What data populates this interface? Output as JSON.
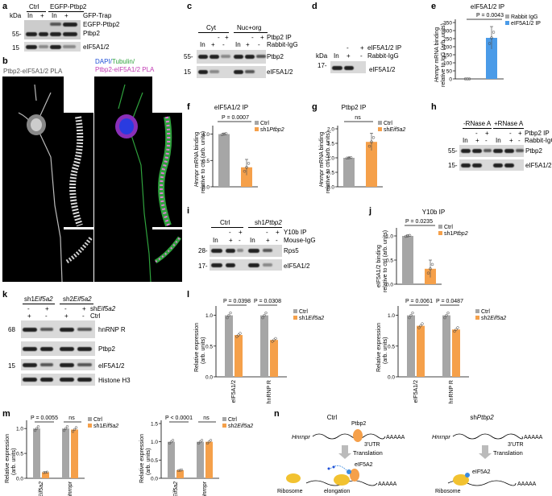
{
  "panels": [
    "a",
    "b",
    "c",
    "d",
    "e",
    "f",
    "g",
    "h",
    "i",
    "j",
    "k",
    "l",
    "m",
    "n"
  ],
  "a": {
    "kda": "kDa",
    "ctrl": "Ctrl",
    "egfp": "EGFP-Ptbp2",
    "in": "In",
    "plus": "+",
    "gfptrap": "GFP-Trap",
    "r1": "EGFP-Ptbp2",
    "r2": "Ptbp2",
    "r3": "eIF5A1/2",
    "mw55": "55-",
    "mw15": "15"
  },
  "b": {
    "left_title": "Ptbp2-eIF5A1/2 PLA",
    "dapi": "DAPI/",
    "tub": "Tubulin/",
    "pla": "Ptbp2-eIF5A1/2 PLA"
  },
  "c": {
    "cyt": "Cyt",
    "nuc": "Nuc+org",
    "in": "In",
    "plus": "+",
    "minus": "-",
    "ip": "Ptbp2 IP",
    "igg": "Rabbit-IgG",
    "r1": "Ptbp2",
    "r2": "eIF5A1/2",
    "mw55": "55-",
    "mw15": "15"
  },
  "d": {
    "kda": "kDa",
    "in": "In",
    "plus": "+",
    "minus": "-",
    "ip": "eIF5A1/2 IP",
    "igg": "Rabbit-IgG",
    "r1": "eIF5A1/2",
    "mw17": "17-"
  },
  "e": {
    "title": "eIF5A1/2 IP",
    "pval": "P = 0.0043",
    "leg1": "Rabbit IgG",
    "leg2": "eIF5A1/2 IP",
    "ylab1": "Hnrnpr",
    "ylab2": " mRNA binding",
    "ylab3": "relative to IgG (arb. units)",
    "ticks": [
      "0",
      "50",
      "100",
      "150",
      "200",
      "250",
      "300",
      "350"
    ]
  },
  "f": {
    "title": "eIF5A1/2 IP",
    "pval": "P = 0.0007",
    "leg1": "Ctrl",
    "leg2": "sh1",
    "leg2i": "Ptbp2",
    "ylab1": "Hnrnpr",
    "ylab2": " mRNA binding",
    "ylab3": "relative to ctrl (arb. units)",
    "ticks": [
      "0.0",
      "0.5",
      "1.0"
    ]
  },
  "g": {
    "title": "Ptbp2 IP",
    "ns": "ns",
    "leg1": "Ctrl",
    "leg2": "sh",
    "leg2i": "Eif5a2",
    "ylab1": "Hnrnpr",
    "ylab2": " mRNA binding",
    "ylab3": "relative to ctrl (arb. units)",
    "ticks": [
      "0.0",
      "0.5",
      "1.0",
      "1.5",
      "2.0"
    ]
  },
  "h": {
    "rm": "-RNase A",
    "rp": "+RNase A",
    "in": "In",
    "plus": "+",
    "minus": "-",
    "ip": "Ptbp2 IP",
    "igg": "Rabbit-IgG",
    "r1": "Ptbp2",
    "r2": "eIF5A1/2",
    "mw55": "55-",
    "mw15": "15-"
  },
  "i": {
    "ctrl": "Ctrl",
    "sh1": "sh1",
    "sh1i": "Ptbp2",
    "in": "In",
    "plus": "+",
    "minus": "-",
    "ip": "Y10b IP",
    "igg": "Mouse-IgG",
    "r1": "Rps5",
    "r2": "eIF5A1/2",
    "mw28": "28-",
    "mw17": "17-"
  },
  "j": {
    "title": "Y10b IP",
    "pval": "P = 0.0235",
    "leg1": "Ctrl",
    "leg2": "sh1",
    "leg2i": "Ptbp2",
    "ylab1": "eIF5A1/2 binding",
    "ylab2": "relative to ctrl (arb. units)",
    "ticks": [
      "0.0",
      "0.5",
      "1.0"
    ]
  },
  "k": {
    "sh1": "sh1",
    "sh2": "sh2",
    "gi": "Eif5a2",
    "plus": "+",
    "minus": "-",
    "shl": "sh",
    "shli": "Eif5a2",
    "ctrl": "Ctrl",
    "r1": "hnRNP R",
    "r2": "Ptbp2",
    "r3": "eIF5A1/2",
    "r4": "Histone H3",
    "mw68": "68",
    "mw15": "15"
  },
  "l": {
    "left": {
      "p1": "P = 0.0398",
      "p2": "P = 0.0308",
      "leg1": "Ctrl",
      "leg2": "sh1",
      "leg2i": "Eif5a2",
      "ylab1": "Relative expression",
      "ylab2": "(arb. units)",
      "cats": [
        "eIF5A1/2",
        "hnRNP R"
      ],
      "ticks": [
        "0.0",
        "0.5",
        "1.0"
      ]
    },
    "right": {
      "p1": "P = 0.0061",
      "p2": "P = 0.0487",
      "leg1": "Ctrl",
      "leg2": "sh2",
      "leg2i": "Eif5a2",
      "ylab1": "Relative expression",
      "ylab2": "(arb. units)",
      "cats": [
        "eIF5A1/2",
        "hnRNP R"
      ],
      "ticks": [
        "0.0",
        "0.5",
        "1.0"
      ]
    }
  },
  "m": {
    "left": {
      "p1": "P = 0.0055",
      "ns": "ns",
      "leg1": "Ctrl",
      "leg2": "sh1",
      "leg2i": "Eif5a2",
      "ylab1": "Relative expression",
      "ylab2": "(arb. units)",
      "cats": [
        "Eif5a2",
        "Hnrnpr"
      ],
      "ticks": [
        "0.0",
        "0.5",
        "1.0"
      ]
    },
    "right": {
      "p1": "P < 0.0001",
      "ns": "ns",
      "leg1": "Ctrl",
      "leg2": "sh2",
      "leg2i": "Eif5a2",
      "ylab1": "Relative expression",
      "ylab2": "(arb. units)",
      "cats": [
        "Eif5a2",
        "Hnrnpr"
      ],
      "ticks": [
        "0.0",
        "0.5",
        "1.0",
        "1.5"
      ]
    }
  },
  "n": {
    "ctrl": "Ctrl",
    "sh": "sh",
    "shi": "Ptbp2",
    "gene": "Hnrnpr",
    "ptbp2": "Ptbp2",
    "utr": "3'UTR",
    "polya": "AAAAA",
    "translation": "Translation",
    "eif": "eIF5A2",
    "ribosome": "Ribosome",
    "elong": "elongation"
  },
  "colors": {
    "ctrl": "#a6a6a6",
    "kd": "#f5a04a",
    "blue": "#4a9be8",
    "magenta": "#c23bb4",
    "green": "#3db34a"
  },
  "chart_data": [
    {
      "type": "bar",
      "panel": "e",
      "title": "eIF5A1/2 IP",
      "categories": [
        "Rabbit IgG",
        "eIF5A1/2 IP"
      ],
      "values": [
        0,
        255
      ],
      "errors": [
        0,
        70
      ],
      "ylim": [
        0,
        350
      ],
      "ylabel": "Hnrnpr mRNA binding relative to IgG (arb. units)",
      "pvalue": "P = 0.0043"
    },
    {
      "type": "bar",
      "panel": "f",
      "title": "eIF5A1/2 IP",
      "categories": [
        "Ctrl",
        "sh1Ptbp2"
      ],
      "values": [
        1.0,
        0.37
      ],
      "errors": [
        0.02,
        0.15
      ],
      "ylim": [
        0,
        1.1
      ],
      "pvalue": "P = 0.0007"
    },
    {
      "type": "bar",
      "panel": "g",
      "title": "Ptbp2 IP",
      "categories": [
        "Ctrl",
        "shEif5a2"
      ],
      "values": [
        1.0,
        1.55
      ],
      "errors": [
        0.02,
        0.3
      ],
      "ylim": [
        0,
        2.0
      ]
    },
    {
      "type": "bar",
      "panel": "j",
      "title": "Y10b IP",
      "categories": [
        "Ctrl",
        "sh1Ptbp2"
      ],
      "values": [
        1.0,
        0.32
      ],
      "errors": [
        0.02,
        0.18
      ],
      "ylim": [
        0,
        1.1
      ],
      "pvalue": "P = 0.0235"
    },
    {
      "type": "bar",
      "panel": "l-left",
      "categories": [
        "eIF5A1/2",
        "hnRNP R"
      ],
      "series": [
        {
          "name": "Ctrl",
          "values": [
            1.0,
            1.0
          ]
        },
        {
          "name": "sh1Eif5a2",
          "values": [
            0.68,
            0.6
          ]
        }
      ],
      "ylim": [
        0,
        1.1
      ]
    },
    {
      "type": "bar",
      "panel": "l-right",
      "categories": [
        "eIF5A1/2",
        "hnRNP R"
      ],
      "series": [
        {
          "name": "Ctrl",
          "values": [
            1.0,
            1.0
          ]
        },
        {
          "name": "sh2Eif5a2",
          "values": [
            0.83,
            0.77
          ]
        }
      ],
      "ylim": [
        0,
        1.1
      ]
    },
    {
      "type": "bar",
      "panel": "m-left",
      "categories": [
        "Eif5a2",
        "Hnrnpr"
      ],
      "series": [
        {
          "name": "Ctrl",
          "values": [
            1.0,
            1.0
          ]
        },
        {
          "name": "sh1Eif5a2",
          "values": [
            0.12,
            0.98
          ]
        }
      ],
      "ylim": [
        0,
        1.1
      ]
    },
    {
      "type": "bar",
      "panel": "m-right",
      "categories": [
        "Eif5a2",
        "Hnrnpr"
      ],
      "series": [
        {
          "name": "Ctrl",
          "values": [
            1.0,
            1.0
          ]
        },
        {
          "name": "sh2Eif5a2",
          "values": [
            0.22,
            1.0
          ]
        }
      ],
      "ylim": [
        0,
        1.5
      ]
    }
  ]
}
